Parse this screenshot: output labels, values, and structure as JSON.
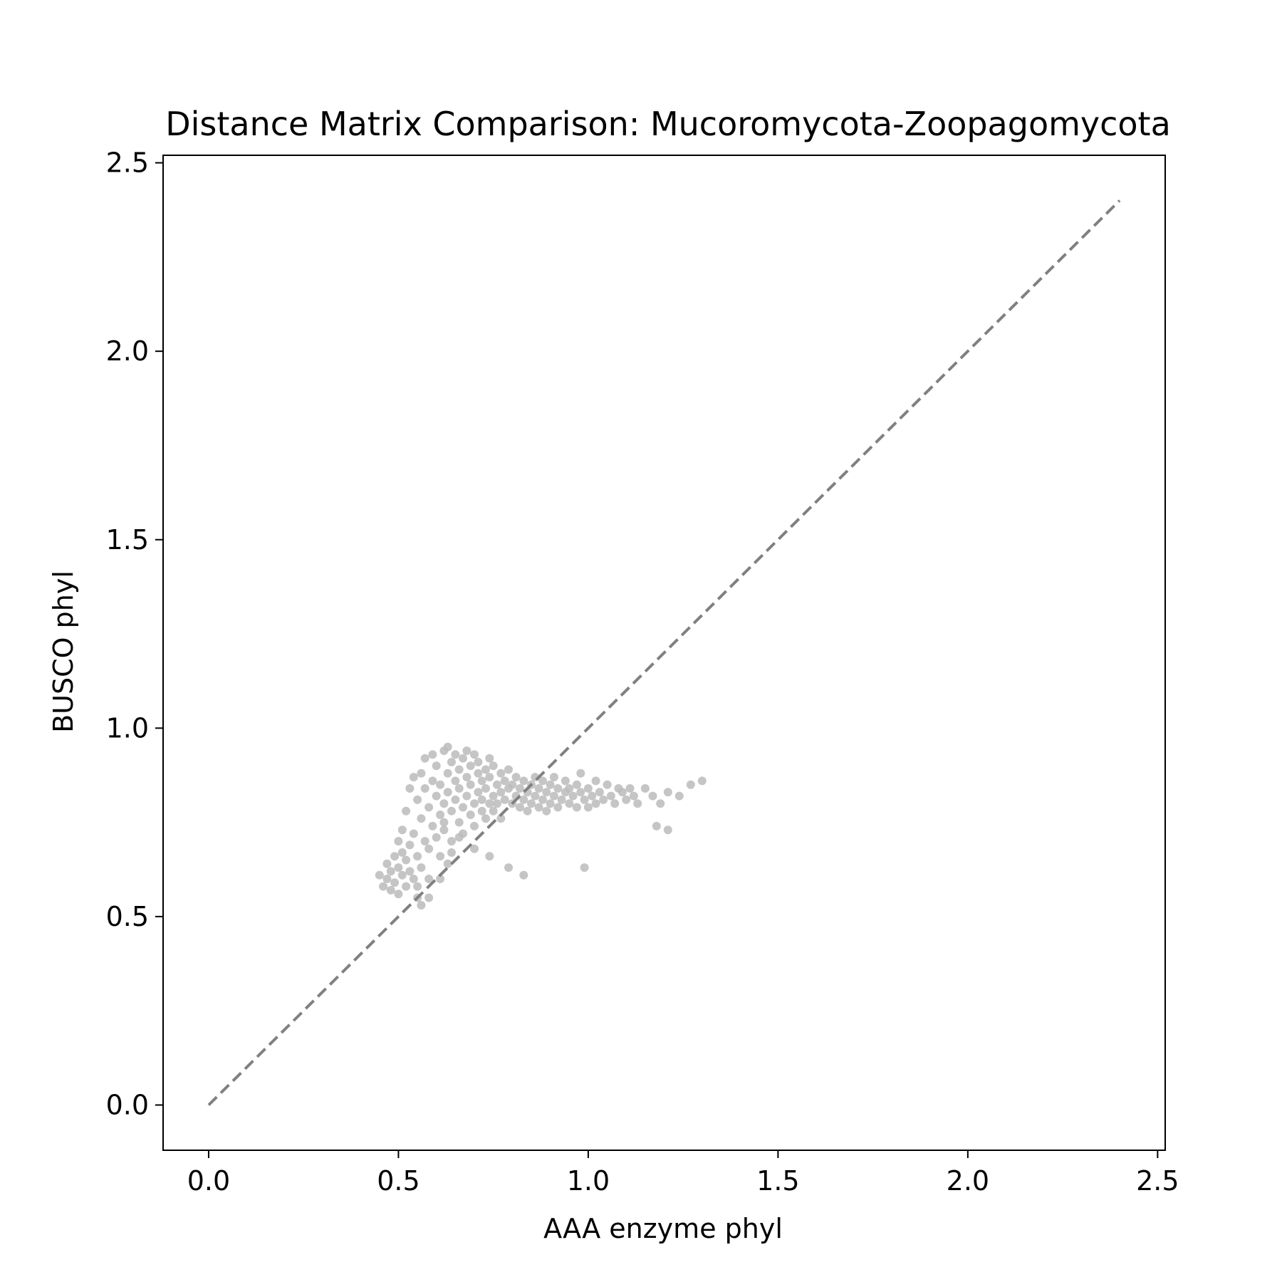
{
  "chart_data": {
    "type": "scatter",
    "title": "Distance Matrix Comparison: Mucoromycota-Zoopagomycota",
    "xlabel": "AAA enzyme phyl",
    "ylabel": "BUSCO phyl",
    "xlim": [
      -0.12,
      2.52
    ],
    "ylim": [
      -0.12,
      2.52
    ],
    "xticks": [
      0.0,
      0.5,
      1.0,
      1.5,
      2.0,
      2.5
    ],
    "yticks": [
      0.0,
      0.5,
      1.0,
      1.5,
      2.0,
      2.5
    ],
    "xtick_labels": [
      "0.0",
      "0.5",
      "1.0",
      "1.5",
      "2.0",
      "2.5"
    ],
    "ytick_labels": [
      "0.0",
      "0.5",
      "1.0",
      "1.5",
      "2.0",
      "2.5"
    ],
    "grid": false,
    "point_color": "#bbbbbb",
    "reference_line": {
      "x": [
        0.0,
        2.4
      ],
      "y": [
        0.0,
        2.4
      ],
      "color": "#808080",
      "style": "dashed"
    },
    "series": [
      {
        "points": [
          [
            0.45,
            0.61
          ],
          [
            0.46,
            0.58
          ],
          [
            0.47,
            0.64
          ],
          [
            0.47,
            0.6
          ],
          [
            0.48,
            0.62
          ],
          [
            0.48,
            0.57
          ],
          [
            0.49,
            0.66
          ],
          [
            0.49,
            0.59
          ],
          [
            0.5,
            0.63
          ],
          [
            0.5,
            0.7
          ],
          [
            0.5,
            0.56
          ],
          [
            0.51,
            0.67
          ],
          [
            0.51,
            0.61
          ],
          [
            0.51,
            0.73
          ],
          [
            0.52,
            0.65
          ],
          [
            0.52,
            0.58
          ],
          [
            0.52,
            0.78
          ],
          [
            0.53,
            0.62
          ],
          [
            0.53,
            0.69
          ],
          [
            0.53,
            0.84
          ],
          [
            0.54,
            0.6
          ],
          [
            0.54,
            0.72
          ],
          [
            0.54,
            0.87
          ],
          [
            0.55,
            0.66
          ],
          [
            0.55,
            0.81
          ],
          [
            0.55,
            0.55
          ],
          [
            0.56,
            0.76
          ],
          [
            0.56,
            0.88
          ],
          [
            0.56,
            0.63
          ],
          [
            0.57,
            0.7
          ],
          [
            0.57,
            0.84
          ],
          [
            0.57,
            0.92
          ],
          [
            0.58,
            0.79
          ],
          [
            0.58,
            0.68
          ],
          [
            0.58,
            0.6
          ],
          [
            0.59,
            0.86
          ],
          [
            0.59,
            0.74
          ],
          [
            0.59,
            0.93
          ],
          [
            0.6,
            0.82
          ],
          [
            0.6,
            0.71
          ],
          [
            0.6,
            0.9
          ],
          [
            0.61,
            0.77
          ],
          [
            0.61,
            0.85
          ],
          [
            0.61,
            0.66
          ],
          [
            0.62,
            0.94
          ],
          [
            0.62,
            0.8
          ],
          [
            0.62,
            0.73
          ],
          [
            0.63,
            0.88
          ],
          [
            0.63,
            0.83
          ],
          [
            0.63,
            0.95
          ],
          [
            0.64,
            0.78
          ],
          [
            0.64,
            0.91
          ],
          [
            0.64,
            0.7
          ],
          [
            0.65,
            0.86
          ],
          [
            0.65,
            0.81
          ],
          [
            0.65,
            0.93
          ],
          [
            0.66,
            0.75
          ],
          [
            0.66,
            0.89
          ],
          [
            0.66,
            0.84
          ],
          [
            0.67,
            0.92
          ],
          [
            0.67,
            0.79
          ],
          [
            0.67,
            0.72
          ],
          [
            0.68,
            0.87
          ],
          [
            0.68,
            0.82
          ],
          [
            0.68,
            0.94
          ],
          [
            0.69,
            0.77
          ],
          [
            0.69,
            0.9
          ],
          [
            0.69,
            0.85
          ],
          [
            0.7,
            0.8
          ],
          [
            0.7,
            0.93
          ],
          [
            0.7,
            0.74
          ],
          [
            0.71,
            0.88
          ],
          [
            0.71,
            0.83
          ],
          [
            0.71,
            0.91
          ],
          [
            0.72,
            0.78
          ],
          [
            0.72,
            0.86
          ],
          [
            0.72,
            0.81
          ],
          [
            0.73,
            0.89
          ],
          [
            0.73,
            0.76
          ],
          [
            0.73,
            0.84
          ],
          [
            0.74,
            0.92
          ],
          [
            0.74,
            0.8
          ],
          [
            0.74,
            0.87
          ],
          [
            0.75,
            0.82
          ],
          [
            0.75,
            0.78
          ],
          [
            0.75,
            0.9
          ],
          [
            0.76,
            0.85
          ],
          [
            0.76,
            0.8
          ],
          [
            0.77,
            0.88
          ],
          [
            0.77,
            0.83
          ],
          [
            0.77,
            0.76
          ],
          [
            0.78,
            0.86
          ],
          [
            0.78,
            0.81
          ],
          [
            0.79,
            0.84
          ],
          [
            0.79,
            0.89
          ],
          [
            0.8,
            0.8
          ],
          [
            0.8,
            0.85
          ],
          [
            0.81,
            0.82
          ],
          [
            0.81,
            0.87
          ],
          [
            0.82,
            0.79
          ],
          [
            0.82,
            0.84
          ],
          [
            0.83,
            0.81
          ],
          [
            0.83,
            0.86
          ],
          [
            0.84,
            0.83
          ],
          [
            0.84,
            0.78
          ],
          [
            0.85,
            0.85
          ],
          [
            0.85,
            0.8
          ],
          [
            0.86,
            0.82
          ],
          [
            0.86,
            0.87
          ],
          [
            0.87,
            0.79
          ],
          [
            0.87,
            0.84
          ],
          [
            0.88,
            0.81
          ],
          [
            0.88,
            0.86
          ],
          [
            0.89,
            0.83
          ],
          [
            0.89,
            0.78
          ],
          [
            0.9,
            0.85
          ],
          [
            0.9,
            0.8
          ],
          [
            0.91,
            0.82
          ],
          [
            0.91,
            0.87
          ],
          [
            0.92,
            0.79
          ],
          [
            0.92,
            0.84
          ],
          [
            0.93,
            0.81
          ],
          [
            0.94,
            0.83
          ],
          [
            0.94,
            0.86
          ],
          [
            0.95,
            0.8
          ],
          [
            0.95,
            0.84
          ],
          [
            0.96,
            0.82
          ],
          [
            0.97,
            0.85
          ],
          [
            0.97,
            0.79
          ],
          [
            0.98,
            0.83
          ],
          [
            0.98,
            0.88
          ],
          [
            0.99,
            0.81
          ],
          [
            1.0,
            0.84
          ],
          [
            1.0,
            0.79
          ],
          [
            1.01,
            0.82
          ],
          [
            1.02,
            0.86
          ],
          [
            1.02,
            0.8
          ],
          [
            1.03,
            0.83
          ],
          [
            1.04,
            0.81
          ],
          [
            1.05,
            0.85
          ],
          [
            1.06,
            0.82
          ],
          [
            1.07,
            0.8
          ],
          [
            1.08,
            0.84
          ],
          [
            1.09,
            0.83
          ],
          [
            1.1,
            0.81
          ],
          [
            1.11,
            0.84
          ],
          [
            1.12,
            0.82
          ],
          [
            1.13,
            0.8
          ],
          [
            1.15,
            0.84
          ],
          [
            1.17,
            0.82
          ],
          [
            1.19,
            0.8
          ],
          [
            1.21,
            0.83
          ],
          [
            1.24,
            0.82
          ],
          [
            1.27,
            0.85
          ],
          [
            1.3,
            0.86
          ],
          [
            1.21,
            0.73
          ],
          [
            1.18,
            0.74
          ],
          [
            0.99,
            0.63
          ],
          [
            0.83,
            0.61
          ],
          [
            0.79,
            0.63
          ],
          [
            0.74,
            0.66
          ],
          [
            0.7,
            0.68
          ],
          [
            0.66,
            0.71
          ],
          [
            0.63,
            0.64
          ],
          [
            0.61,
            0.6
          ],
          [
            0.58,
            0.55
          ],
          [
            0.56,
            0.53
          ],
          [
            0.55,
            0.58
          ],
          [
            0.62,
            0.75
          ],
          [
            0.64,
            0.67
          ]
        ]
      }
    ]
  }
}
